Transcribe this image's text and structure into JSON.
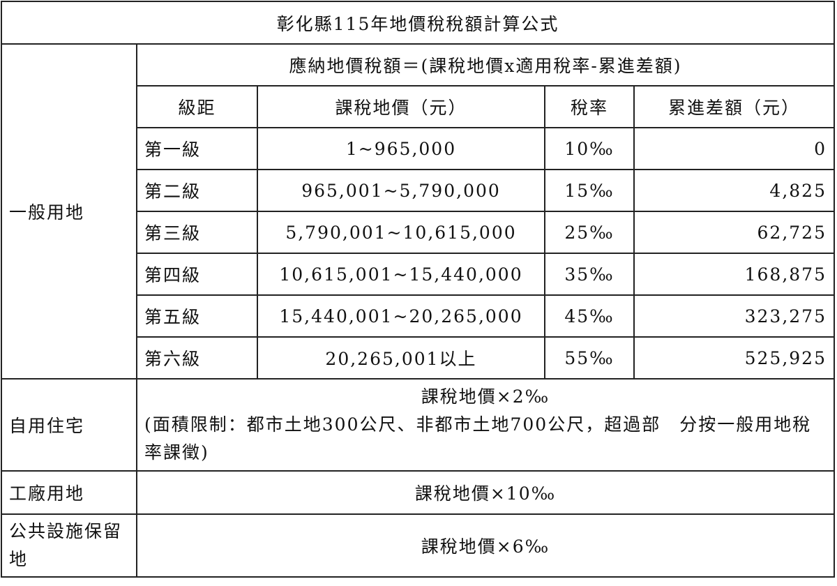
{
  "title": "彰化縣115年地價稅稅額計算公式",
  "general": {
    "label": "一般用地",
    "formula": "應納地價稅額＝(課稅地價x適用稅率-累進差額)",
    "headers": [
      "級距",
      "課稅地價（元）",
      "稅率",
      "累進差額（元）"
    ],
    "rows": [
      {
        "level": "第一級",
        "value": "1~965,000",
        "rate": "10‰",
        "diff": "0"
      },
      {
        "level": "第二級",
        "value": "965,001~5,790,000",
        "rate": "15‰",
        "diff": "4,825"
      },
      {
        "level": "第三級",
        "value": "5,790,001~10,615,000",
        "rate": "25‰",
        "diff": "62,725"
      },
      {
        "level": "第四級",
        "value": "10,615,001~15,440,000",
        "rate": "35‰",
        "diff": "168,875"
      },
      {
        "level": "第五級",
        "value": "15,440,001~20,265,000",
        "rate": "45‰",
        "diff": "323,275"
      },
      {
        "level": "第六級",
        "value": "20,265,001以上",
        "rate": "55‰",
        "diff": "525,925"
      }
    ]
  },
  "residential": {
    "label": "自用住宅",
    "formula": "課稅地價×2‰",
    "note": "(面積限制：都市土地300公尺、非都市土地700公尺，超過部　分按一般用地稅率課徵)"
  },
  "factory": {
    "label": "工廠用地",
    "formula": "課稅地價×10‰"
  },
  "public": {
    "label": "公共設施保留地",
    "formula": "課稅地價×6‰"
  }
}
